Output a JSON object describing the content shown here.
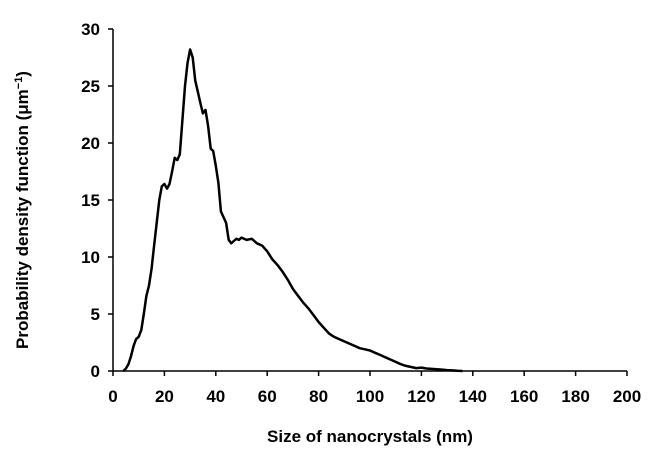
{
  "chart_data": {
    "type": "line",
    "title": "",
    "xlabel": "Size of nanocrystals (nm)",
    "ylabel": "Probability density function (μm",
    "ylabel_superscript": "−1",
    "ylabel_close": ")",
    "xlim": [
      0,
      200
    ],
    "ylim": [
      0,
      30
    ],
    "x_ticks": [
      0,
      20,
      40,
      60,
      80,
      100,
      120,
      140,
      160,
      180,
      200
    ],
    "y_ticks": [
      0,
      5,
      10,
      15,
      20,
      25,
      30
    ],
    "grid": false,
    "legend": "none",
    "series": [
      {
        "color": "#000000",
        "points": [
          [
            4,
            0
          ],
          [
            5,
            0.2
          ],
          [
            6,
            0.6
          ],
          [
            7,
            1.3
          ],
          [
            8,
            2.2
          ],
          [
            9,
            2.8
          ],
          [
            10,
            3.0
          ],
          [
            11,
            3.6
          ],
          [
            12,
            5.0
          ],
          [
            13,
            6.6
          ],
          [
            14,
            7.5
          ],
          [
            15,
            9.0
          ],
          [
            16,
            11.0
          ],
          [
            17,
            13.0
          ],
          [
            18,
            15.0
          ],
          [
            19,
            16.2
          ],
          [
            20,
            16.4
          ],
          [
            21,
            16.0
          ],
          [
            22,
            16.4
          ],
          [
            23,
            17.5
          ],
          [
            24,
            18.7
          ],
          [
            25,
            18.5
          ],
          [
            26,
            19.0
          ],
          [
            27,
            22.0
          ],
          [
            28,
            25.0
          ],
          [
            29,
            27.0
          ],
          [
            30,
            28.2
          ],
          [
            31,
            27.5
          ],
          [
            32,
            25.5
          ],
          [
            33,
            24.5
          ],
          [
            34,
            23.5
          ],
          [
            35,
            22.6
          ],
          [
            36,
            22.9
          ],
          [
            37,
            21.5
          ],
          [
            38,
            19.5
          ],
          [
            39,
            19.3
          ],
          [
            40,
            18.0
          ],
          [
            41,
            16.5
          ],
          [
            42,
            14.0
          ],
          [
            43,
            13.5
          ],
          [
            44,
            13.0
          ],
          [
            45,
            11.5
          ],
          [
            46,
            11.2
          ],
          [
            47,
            11.4
          ],
          [
            48,
            11.6
          ],
          [
            49,
            11.5
          ],
          [
            50,
            11.7
          ],
          [
            52,
            11.5
          ],
          [
            54,
            11.6
          ],
          [
            56,
            11.2
          ],
          [
            58,
            11.0
          ],
          [
            60,
            10.5
          ],
          [
            62,
            9.8
          ],
          [
            64,
            9.3
          ],
          [
            66,
            8.7
          ],
          [
            68,
            8.0
          ],
          [
            70,
            7.2
          ],
          [
            72,
            6.6
          ],
          [
            74,
            6.0
          ],
          [
            76,
            5.5
          ],
          [
            78,
            4.9
          ],
          [
            80,
            4.3
          ],
          [
            82,
            3.8
          ],
          [
            84,
            3.3
          ],
          [
            86,
            3.0
          ],
          [
            88,
            2.8
          ],
          [
            90,
            2.6
          ],
          [
            92,
            2.4
          ],
          [
            94,
            2.2
          ],
          [
            96,
            2.0
          ],
          [
            98,
            1.9
          ],
          [
            100,
            1.8
          ],
          [
            102,
            1.6
          ],
          [
            104,
            1.4
          ],
          [
            106,
            1.2
          ],
          [
            108,
            1.0
          ],
          [
            110,
            0.8
          ],
          [
            112,
            0.6
          ],
          [
            114,
            0.45
          ],
          [
            116,
            0.35
          ],
          [
            118,
            0.25
          ],
          [
            120,
            0.3
          ],
          [
            122,
            0.22
          ],
          [
            124,
            0.18
          ],
          [
            126,
            0.15
          ],
          [
            128,
            0.12
          ],
          [
            130,
            0.08
          ],
          [
            132,
            0.05
          ],
          [
            134,
            0.02
          ],
          [
            136,
            0
          ]
        ]
      }
    ]
  }
}
